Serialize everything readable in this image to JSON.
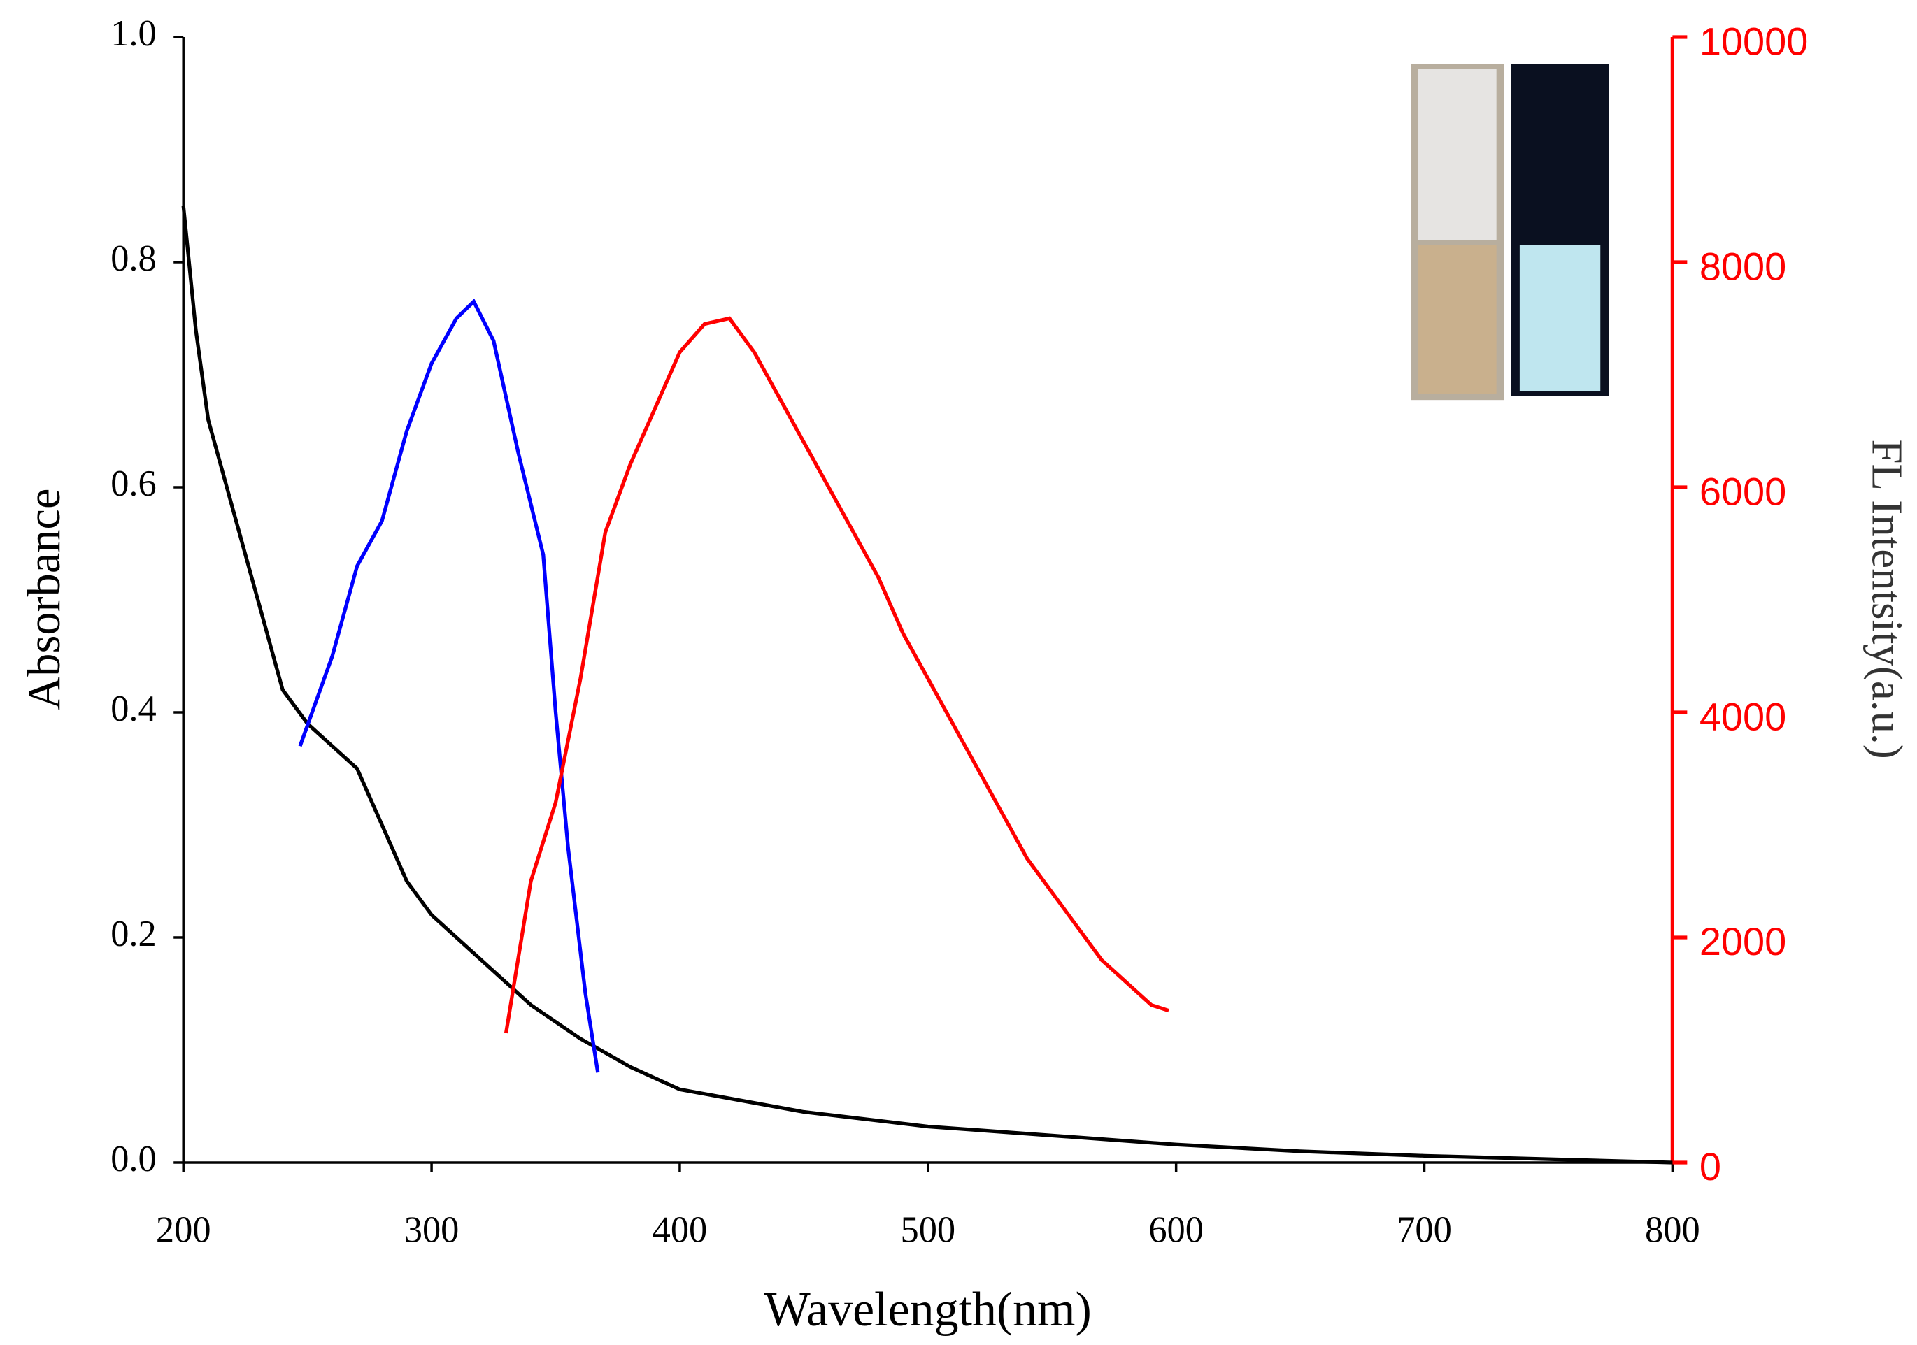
{
  "chart_data": {
    "type": "line",
    "x_label": "Wavelength(nm)",
    "y_label": "Absorbance",
    "y2_label": "FL Intentsity(a.u.)",
    "xlim": [
      200,
      800
    ],
    "xticks": [
      200,
      300,
      400,
      500,
      600,
      700,
      800
    ],
    "ylim": [
      0,
      1
    ],
    "yticks": [
      {
        "value": 0,
        "label": "0.0"
      },
      0.2,
      0.4,
      0.6,
      0.8,
      {
        "value": 1,
        "label": "1.0"
      }
    ],
    "y2lim": [
      0,
      10000
    ],
    "y2ticks": [
      0,
      2000,
      4000,
      6000,
      8000,
      10000
    ],
    "y2_color": "#ff0000",
    "series": [
      {
        "color": "#000000",
        "x": [
          200,
          205,
          210,
          220,
          230,
          240,
          250,
          260,
          270,
          280,
          290,
          300,
          320,
          340,
          360,
          380,
          400,
          450,
          500,
          550,
          600,
          650,
          700,
          750,
          800
        ],
        "values": [
          0.85,
          0.74,
          0.66,
          0.58,
          0.5,
          0.42,
          0.39,
          0.37,
          0.35,
          0.3,
          0.25,
          0.22,
          0.18,
          0.14,
          0.11,
          0.085,
          0.065,
          0.045,
          0.032,
          0.024,
          0.016,
          0.01,
          0.006,
          0.003,
          0
        ]
      },
      {
        "color": "#0000ff",
        "axis": "y2",
        "x": [
          247,
          260,
          270,
          280,
          290,
          300,
          310,
          317,
          325,
          335,
          345,
          350,
          355,
          362,
          367
        ],
        "values": [
          3700,
          4500,
          5300,
          5700,
          6500,
          7100,
          7500,
          7650,
          7300,
          6300,
          5400,
          4000,
          2800,
          1500,
          800
        ]
      },
      {
        "color": "#ff0000",
        "axis": "y2",
        "x": [
          330,
          340,
          350,
          360,
          370,
          380,
          390,
          400,
          410,
          420,
          430,
          440,
          450,
          460,
          470,
          480,
          490,
          500,
          510,
          520,
          530,
          540,
          550,
          560,
          570,
          580,
          590,
          597
        ],
        "values": [
          1150,
          2500,
          3200,
          4300,
          5600,
          6200,
          6700,
          7200,
          7450,
          7500,
          7200,
          6800,
          6400,
          6000,
          5600,
          5200,
          4700,
          4300,
          3900,
          3500,
          3100,
          2700,
          2400,
          2100,
          1800,
          1600,
          1400,
          1350
        ]
      }
    ]
  }
}
